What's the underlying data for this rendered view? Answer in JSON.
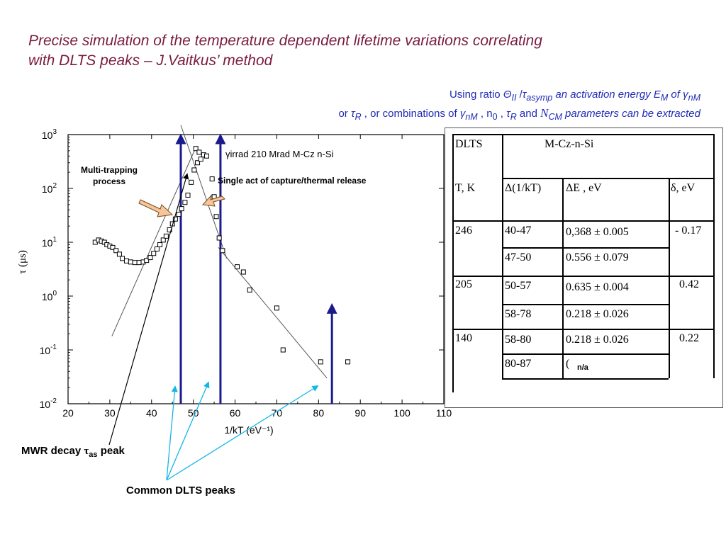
{
  "slide": {
    "title_line1": "Precise simulation of the temperature dependent lifetime variations correlating",
    "title_line2": "with DLTS peaks – J.Vaitkus’ method",
    "sub1": {
      "a": "Using ratio ",
      "theta": "Θ",
      "thetaSub": "II",
      "slash": " /",
      "tau": "τ",
      "tauSub": "asymp",
      "b": " an activation energy ",
      "e": "E",
      "eSub": "M",
      "c": " of ",
      "gamma": "γ",
      "gammaSub": "nM"
    },
    "sub2": {
      "a": "or ",
      "tau": "τ",
      "tauSub": "R",
      "b": " , or combinations of  ",
      "gamma": "γ",
      "gammaSub": "nM",
      "c": "  , n",
      "nSub": "0",
      "d": " ,  ",
      "tau2": "τ",
      "tau2Sub": "R",
      "e": "  and ",
      "n": "N",
      "nSub2": "CM",
      "f": " parameters can be extracted"
    }
  },
  "annotations": {
    "multi_trapping": "Multi-trapping",
    "process": "process",
    "single_act": "Single act of capture/thermal release",
    "mwr_a": "MWR decay ",
    "mwr_tau": "τ",
    "mwr_sub": "as",
    "mwr_b": " peak",
    "common_dlts": "Common DLTS peaks"
  },
  "chart_data": {
    "type": "scatter",
    "annotation": "γirrad  210 Mrad M-Cz n-Si",
    "xlabel": "1/kT  (eV⁻¹)",
    "ylabel": "τ (μs)",
    "xlim": [
      20,
      110
    ],
    "ylim_log10": [
      -2,
      3
    ],
    "x_ticks": [
      "20",
      "30",
      "40",
      "50",
      "60",
      "70",
      "80",
      "90",
      "100",
      "110"
    ],
    "y_ticks": [
      {
        "base": "10",
        "exp": "3"
      },
      {
        "base": "10",
        "exp": "2"
      },
      {
        "base": "10",
        "exp": "1"
      },
      {
        "base": "10",
        "exp": "0"
      },
      {
        "base": "10",
        "exp": "-1"
      },
      {
        "base": "10",
        "exp": "-2"
      }
    ],
    "points": [
      [
        26.5,
        10
      ],
      [
        27.3,
        11
      ],
      [
        28.0,
        10.5
      ],
      [
        28.7,
        10
      ],
      [
        29.3,
        9
      ],
      [
        30.0,
        8.5
      ],
      [
        30.7,
        8
      ],
      [
        31.5,
        7
      ],
      [
        32.3,
        6
      ],
      [
        33.0,
        5
      ],
      [
        34.0,
        4.5
      ],
      [
        35.0,
        4.3
      ],
      [
        36.0,
        4.2
      ],
      [
        37.0,
        4.2
      ],
      [
        38.0,
        4.3
      ],
      [
        38.8,
        4.6
      ],
      [
        39.7,
        5.2
      ],
      [
        40.5,
        6.2
      ],
      [
        41.3,
        7.5
      ],
      [
        42.0,
        9
      ],
      [
        42.8,
        11
      ],
      [
        43.5,
        13
      ],
      [
        44.3,
        17
      ],
      [
        45.0,
        22
      ],
      [
        45.7,
        27
      ],
      [
        46.5,
        33
      ],
      [
        47.2,
        42
      ],
      [
        48.0,
        55
      ],
      [
        48.7,
        75
      ],
      [
        49.5,
        130
      ],
      [
        50.2,
        220
      ],
      [
        51.0,
        300
      ],
      [
        51.8,
        350
      ],
      [
        52.5,
        420
      ],
      [
        53.2,
        400
      ],
      [
        50.6,
        550
      ],
      [
        51.4,
        470
      ],
      [
        54.5,
        150
      ],
      [
        55.0,
        70
      ],
      [
        55.5,
        30
      ],
      [
        56.2,
        12
      ],
      [
        57.0,
        7
      ],
      [
        60.5,
        3.5
      ],
      [
        62.0,
        2.8
      ],
      [
        63.5,
        1.3
      ],
      [
        70.0,
        0.6
      ],
      [
        71.5,
        0.1
      ],
      [
        80.5,
        0.06
      ],
      [
        87.0,
        0.06
      ]
    ],
    "fit_lines": [
      {
        "name": "",
        "points": [
          [
            30.5,
            0.18
          ],
          [
            50.7,
            600
          ]
        ]
      },
      {
        "name": "",
        "points": [
          [
            47.0,
            1500
          ],
          [
            58.0,
            5
          ]
        ]
      },
      {
        "name": "",
        "points": [
          [
            56.0,
            8
          ],
          [
            82.0,
            0.03
          ]
        ]
      }
    ],
    "dlts_peaks_x": [
      47.0,
      56.5,
      83.2
    ],
    "dlts_peak_top_log10": [
      3.0,
      3.0,
      -0.15
    ]
  },
  "table": {
    "title_left": "DLTS",
    "title_right": "M-Cz-n-Si",
    "headers": [
      "T, K",
      "Δ(1/kT)",
      "ΔE , eV",
      "δ, eV"
    ],
    "groups": [
      {
        "T": "246",
        "delta": "- 0.17",
        "rows": [
          [
            "40-47",
            "0,368 ± 0.005"
          ],
          [
            "47-50",
            "0.556 ± 0.079"
          ]
        ]
      },
      {
        "T": "205",
        "delta": "0.42",
        "rows": [
          [
            "50-57",
            "0.635 ± 0.004"
          ],
          [
            "58-78",
            "0.218 ± 0.026"
          ]
        ]
      },
      {
        "T": "140",
        "delta": "0.22",
        "rows": [
          [
            "58-80",
            "0.218 ± 0.026"
          ],
          [
            "80-87",
            "("
          ]
        ]
      }
    ],
    "na_label": "n/a"
  }
}
